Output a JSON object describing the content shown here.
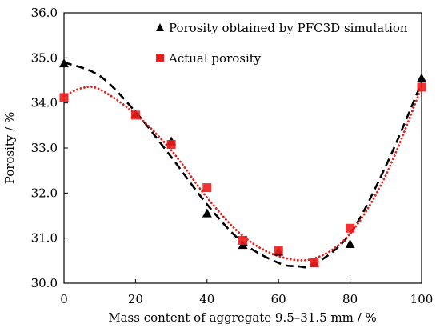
{
  "chart_data": {
    "type": "scatter",
    "xlabel": "Mass content of aggregate 9.5–31.5 mm / %",
    "ylabel": "Porosity / %",
    "xlim": [
      0,
      100
    ],
    "ylim": [
      30.0,
      36.0
    ],
    "xticks": [
      0,
      20,
      40,
      60,
      80,
      100
    ],
    "yticks": [
      "30.0",
      "31.0",
      "32.0",
      "33.0",
      "34.0",
      "35.0",
      "36.0"
    ],
    "legend_position": "top-right",
    "series": [
      {
        "name": "Porosity obtained by PFC3D simulation",
        "marker": "triangle",
        "color": "#000000",
        "x": [
          0,
          20,
          30,
          40,
          50,
          60,
          70,
          80,
          100
        ],
        "y": [
          34.88,
          33.75,
          33.15,
          31.55,
          30.85,
          30.7,
          30.45,
          30.87,
          34.55
        ],
        "fit": {
          "style": "dashed",
          "color": "#000000",
          "x": [
            0,
            10,
            20,
            30,
            40,
            50,
            60,
            65,
            70,
            80,
            90,
            100
          ],
          "y": [
            34.9,
            34.6,
            33.8,
            32.8,
            31.75,
            30.9,
            30.45,
            30.38,
            30.42,
            31.1,
            32.6,
            34.45
          ]
        }
      },
      {
        "name": "Actual porosity",
        "marker": "square",
        "color": "#ee1c1c",
        "x": [
          0,
          20,
          30,
          40,
          50,
          60,
          70,
          80,
          100
        ],
        "y": [
          34.12,
          33.73,
          33.08,
          32.12,
          30.95,
          30.73,
          30.45,
          31.22,
          34.35
        ],
        "fit": {
          "style": "dotted",
          "color": "#e0201e",
          "x": [
            0,
            5,
            10,
            20,
            30,
            40,
            50,
            60,
            70,
            80,
            90,
            100
          ],
          "y": [
            34.15,
            34.33,
            34.3,
            33.75,
            32.95,
            31.9,
            31.05,
            30.6,
            30.55,
            31.1,
            32.4,
            34.35
          ]
        }
      }
    ]
  }
}
